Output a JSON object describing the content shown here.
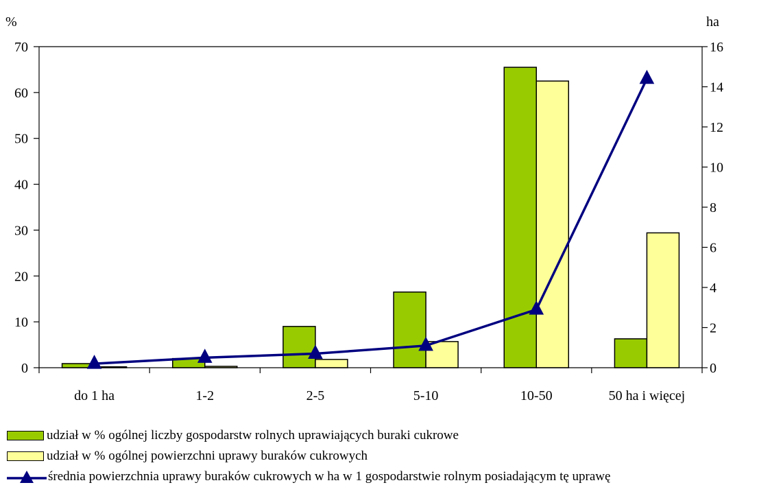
{
  "chart_data": {
    "type": "bar",
    "categories": [
      "do 1 ha",
      "1-2",
      "2-5",
      "5-10",
      "10-50",
      "50 ha i więcej"
    ],
    "left_axis": {
      "label": "%",
      "ylim": [
        0,
        70
      ],
      "ticks": [
        0,
        10,
        20,
        30,
        40,
        50,
        60,
        70
      ]
    },
    "right_axis": {
      "label": "ha",
      "ylim": [
        0,
        16
      ],
      "ticks": [
        0,
        2,
        4,
        6,
        8,
        10,
        12,
        14,
        16
      ]
    },
    "grid": false,
    "legend_position": "bottom",
    "series": [
      {
        "name": "udział w % ogólnej liczby gospodarstw rolnych uprawiających buraki cukrowe",
        "type": "bar",
        "axis": "left",
        "color": "#99cc00",
        "values": [
          0.9,
          2.0,
          9.0,
          16.5,
          65.5,
          6.3
        ]
      },
      {
        "name": "udział w % ogólnej powierzchni uprawy buraków cukrowych",
        "type": "bar",
        "axis": "left",
        "color": "#ffff99",
        "values": [
          0.2,
          0.3,
          1.8,
          5.7,
          62.5,
          29.4
        ]
      },
      {
        "name": "średnia powierzchnia uprawy buraków cukrowych w ha w 1 gospodarstwie rolnym posiadającym tę uprawę",
        "type": "line",
        "axis": "right",
        "color": "#000080",
        "marker": "triangle",
        "values": [
          0.2,
          0.5,
          0.7,
          1.1,
          2.9,
          14.4
        ]
      }
    ]
  }
}
